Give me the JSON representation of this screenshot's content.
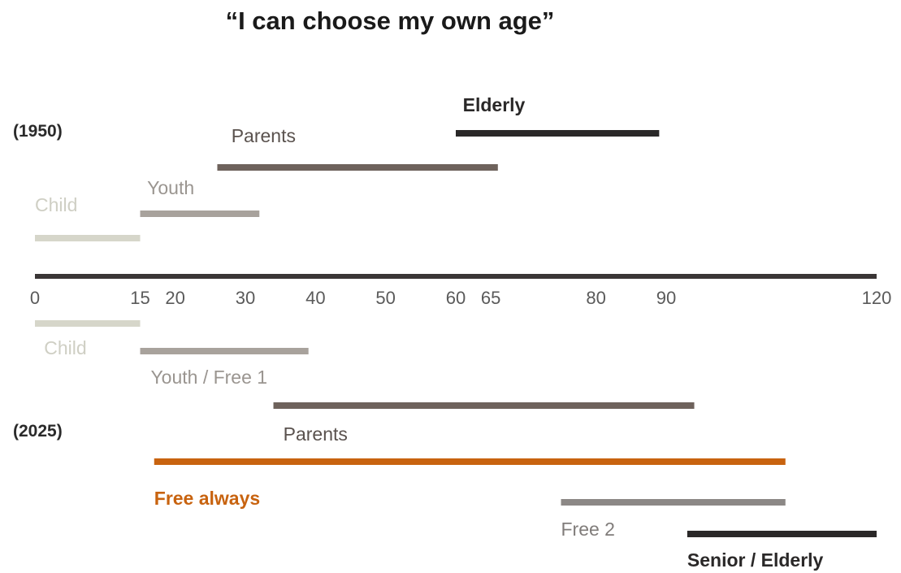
{
  "title": "“I can choose my own age”",
  "axis": {
    "min": 0,
    "max": 120,
    "ticks": [
      {
        "value": 0,
        "label": "0"
      },
      {
        "value": 15,
        "label": "15"
      },
      {
        "value": 20,
        "label": "20"
      },
      {
        "value": 30,
        "label": "30"
      },
      {
        "value": 40,
        "label": "40"
      },
      {
        "value": 50,
        "label": "50"
      },
      {
        "value": 60,
        "label": "60"
      },
      {
        "value": 65,
        "label": "65"
      },
      {
        "value": 80,
        "label": "80"
      },
      {
        "value": 90,
        "label": "90"
      },
      {
        "value": 120,
        "label": "120"
      }
    ],
    "color": "#3a3636"
  },
  "timelines": [
    {
      "year": "(1950)",
      "segments": [
        {
          "name": "child",
          "label": "Child",
          "start": 0,
          "end": 15,
          "color": "#d6d6ca",
          "label_color": "#cfcfc4",
          "bold": false
        },
        {
          "name": "youth",
          "label": "Youth",
          "start": 15,
          "end": 32,
          "color": "#a8a29c",
          "label_color": "#9a9590",
          "bold": false
        },
        {
          "name": "parents",
          "label": "Parents",
          "start": 26,
          "end": 66,
          "color": "#6e625c",
          "label_color": "#5a524e",
          "bold": false
        },
        {
          "name": "elderly",
          "label": "Elderly",
          "start": 60,
          "end": 89,
          "color": "#2a2828",
          "label_color": "#2a2828",
          "bold": true
        }
      ]
    },
    {
      "year": "(2025)",
      "segments": [
        {
          "name": "child",
          "label": "Child",
          "start": 0,
          "end": 15,
          "color": "#d6d6ca",
          "label_color": "#cfcfc4",
          "bold": false
        },
        {
          "name": "youth-free-1",
          "label": "Youth / Free 1",
          "start": 15,
          "end": 39,
          "color": "#a8a29c",
          "label_color": "#9a9590",
          "bold": false
        },
        {
          "name": "parents",
          "label": "Parents",
          "start": 34,
          "end": 94,
          "color": "#6e625c",
          "label_color": "#5a524e",
          "bold": false
        },
        {
          "name": "free-always",
          "label": "Free always",
          "start": 17,
          "end": 107,
          "color": "#c8630f",
          "label_color": "#c8630f",
          "bold": true
        },
        {
          "name": "free-2",
          "label": "Free 2",
          "start": 75,
          "end": 107,
          "color": "#8c8886",
          "label_color": "#807c7a",
          "bold": false
        },
        {
          "name": "senior-elderly",
          "label": "Senior / Elderly",
          "start": 93,
          "end": 120,
          "color": "#2a2828",
          "label_color": "#2a2828",
          "bold": true
        }
      ]
    }
  ]
}
